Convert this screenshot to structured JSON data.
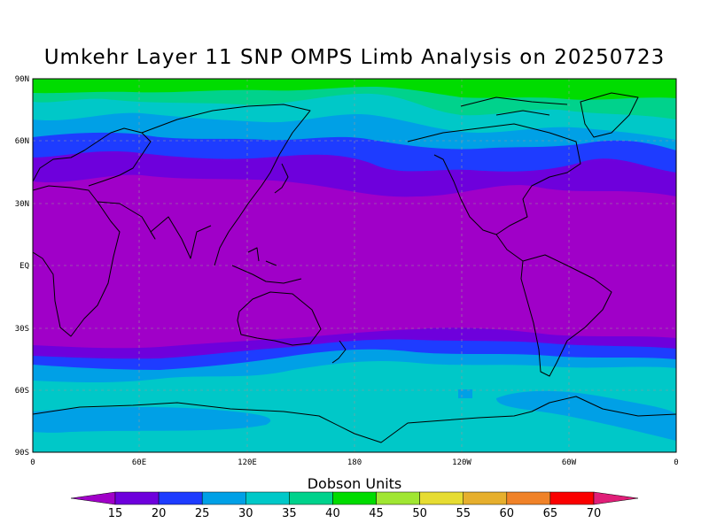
{
  "title": "Umkehr Layer 11 SNP OMPS Limb Analysis on 20250723",
  "colorbar": {
    "title": "Dobson Units",
    "levels": [
      "15",
      "20",
      "25",
      "30",
      "35",
      "40",
      "45",
      "50",
      "55",
      "60",
      "65",
      "70"
    ],
    "colors": [
      "#a000c8",
      "#6e00dc",
      "#1e3cff",
      "#00a0e6",
      "#00c8c8",
      "#00d28c",
      "#00dc00",
      "#a0e632",
      "#e6dc32",
      "#e6af2d",
      "#f08228",
      "#fa0000",
      "#e01e78"
    ]
  },
  "map": {
    "lat_labels": [
      "90N",
      "60N",
      "30N",
      "EQ",
      "30S",
      "60S",
      "90S"
    ],
    "lon_labels": [
      "0",
      "60E",
      "120E",
      "180",
      "120W",
      "60W",
      "0"
    ]
  }
}
